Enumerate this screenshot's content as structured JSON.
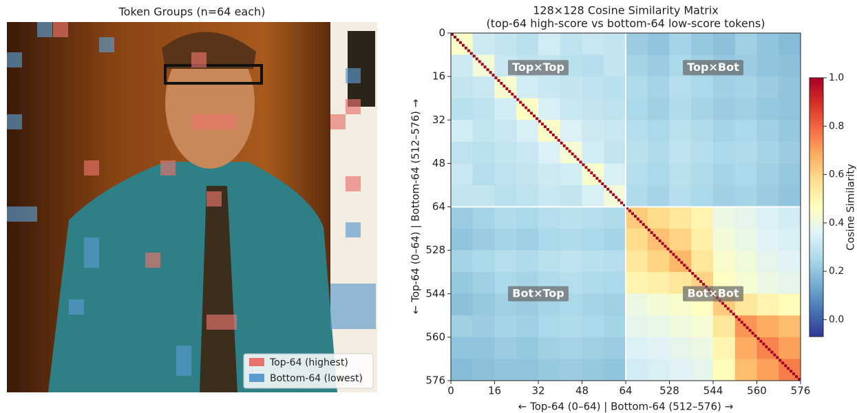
{
  "left_panel": {
    "title": "Token Groups (n=64 each)",
    "legend": [
      {
        "name": "Top-64 (highest)",
        "color": "#e8736b"
      },
      {
        "name": "Bottom-64 (lowest)",
        "color": "#5b9bd0"
      }
    ]
  },
  "chart_data": {
    "type": "heatmap",
    "title": "128×128 Cosine Similarity Matrix",
    "subtitle": "(top-64 high-score  vs  bottom-64 low-score tokens)",
    "x_label": "← Top-64 (0–64)  |  Bottom-64 (512–576) →",
    "y_label": "← Top-64 (0–64)  |  Bottom-64 (512–576) →",
    "colorbar_label": "Cosine Similarity",
    "annotations": [
      "Top×Top",
      "Top×Bot",
      "Bot×Top",
      "Bot×Bot"
    ],
    "xlim": [
      0,
      128
    ],
    "ylim": [
      0,
      128
    ],
    "xticks": [
      0,
      16,
      32,
      48,
      64,
      {
        "value": 80,
        "label": "528"
      },
      {
        "value": 96,
        "label": "544"
      },
      {
        "value": 112,
        "label": "560"
      },
      {
        "value": 128,
        "label": "576"
      }
    ],
    "yticks": [
      0,
      16,
      32,
      48,
      64,
      {
        "value": 80,
        "label": "528"
      },
      {
        "value": 96,
        "label": "544"
      },
      {
        "value": 112,
        "label": "560"
      },
      {
        "value": 128,
        "label": "576"
      }
    ],
    "zlim": [
      -0.07,
      1.0
    ],
    "zticks": [
      {
        "value": 0,
        "label": "0.0"
      },
      {
        "value": 0.2,
        "label": "0.2"
      },
      {
        "value": 0.4,
        "label": "0.4"
      },
      {
        "value": 0.6,
        "label": "0.6"
      },
      {
        "value": 0.8,
        "label": "0.8"
      },
      {
        "value": 1.0,
        "label": "1.0"
      }
    ],
    "colormap": [
      "#313695",
      "#4575b4",
      "#74add1",
      "#abd9e9",
      "#e0f3f8",
      "#ffffbf",
      "#fee090",
      "#fdae61",
      "#f46d43",
      "#d73027",
      "#a50026"
    ],
    "diagonal": 1.0,
    "values": [
      [
        0.45,
        0.32,
        0.3,
        0.28,
        0.33,
        0.29,
        0.31,
        0.3,
        0.22,
        0.2,
        0.24,
        0.21,
        0.19,
        0.23,
        0.2,
        0.18
      ],
      [
        0.32,
        0.42,
        0.31,
        0.29,
        0.3,
        0.28,
        0.27,
        0.3,
        0.24,
        0.22,
        0.25,
        0.23,
        0.21,
        0.22,
        0.2,
        0.19
      ],
      [
        0.3,
        0.31,
        0.44,
        0.33,
        0.31,
        0.3,
        0.29,
        0.28,
        0.26,
        0.24,
        0.27,
        0.25,
        0.23,
        0.24,
        0.22,
        0.2
      ],
      [
        0.28,
        0.29,
        0.33,
        0.46,
        0.34,
        0.31,
        0.3,
        0.29,
        0.25,
        0.23,
        0.26,
        0.24,
        0.22,
        0.23,
        0.21,
        0.2
      ],
      [
        0.33,
        0.3,
        0.31,
        0.34,
        0.45,
        0.35,
        0.32,
        0.31,
        0.27,
        0.25,
        0.28,
        0.26,
        0.24,
        0.25,
        0.23,
        0.21
      ],
      [
        0.29,
        0.28,
        0.3,
        0.31,
        0.35,
        0.43,
        0.33,
        0.3,
        0.28,
        0.26,
        0.29,
        0.27,
        0.25,
        0.26,
        0.24,
        0.22
      ],
      [
        0.31,
        0.27,
        0.29,
        0.3,
        0.32,
        0.33,
        0.44,
        0.34,
        0.27,
        0.25,
        0.28,
        0.26,
        0.24,
        0.25,
        0.23,
        0.21
      ],
      [
        0.3,
        0.3,
        0.28,
        0.29,
        0.31,
        0.3,
        0.34,
        0.42,
        0.26,
        0.24,
        0.27,
        0.25,
        0.23,
        0.24,
        0.22,
        0.2
      ],
      [
        0.22,
        0.24,
        0.26,
        0.25,
        0.27,
        0.28,
        0.27,
        0.26,
        0.62,
        0.58,
        0.55,
        0.5,
        0.4,
        0.38,
        0.35,
        0.33
      ],
      [
        0.2,
        0.22,
        0.24,
        0.23,
        0.25,
        0.26,
        0.25,
        0.24,
        0.58,
        0.64,
        0.6,
        0.52,
        0.42,
        0.39,
        0.36,
        0.34
      ],
      [
        0.24,
        0.25,
        0.27,
        0.26,
        0.28,
        0.29,
        0.28,
        0.27,
        0.55,
        0.6,
        0.66,
        0.55,
        0.44,
        0.41,
        0.38,
        0.36
      ],
      [
        0.21,
        0.23,
        0.25,
        0.24,
        0.26,
        0.27,
        0.26,
        0.25,
        0.5,
        0.52,
        0.55,
        0.6,
        0.46,
        0.43,
        0.4,
        0.38
      ],
      [
        0.19,
        0.21,
        0.23,
        0.22,
        0.24,
        0.25,
        0.24,
        0.23,
        0.4,
        0.42,
        0.44,
        0.46,
        0.62,
        0.55,
        0.5,
        0.48
      ],
      [
        0.23,
        0.22,
        0.24,
        0.23,
        0.25,
        0.26,
        0.25,
        0.24,
        0.38,
        0.39,
        0.41,
        0.43,
        0.55,
        0.72,
        0.68,
        0.65
      ],
      [
        0.2,
        0.2,
        0.22,
        0.21,
        0.23,
        0.24,
        0.23,
        0.22,
        0.35,
        0.36,
        0.38,
        0.4,
        0.5,
        0.68,
        0.75,
        0.7
      ],
      [
        0.18,
        0.19,
        0.2,
        0.2,
        0.21,
        0.22,
        0.21,
        0.2,
        0.33,
        0.34,
        0.36,
        0.38,
        0.48,
        0.65,
        0.7,
        0.76
      ]
    ]
  }
}
